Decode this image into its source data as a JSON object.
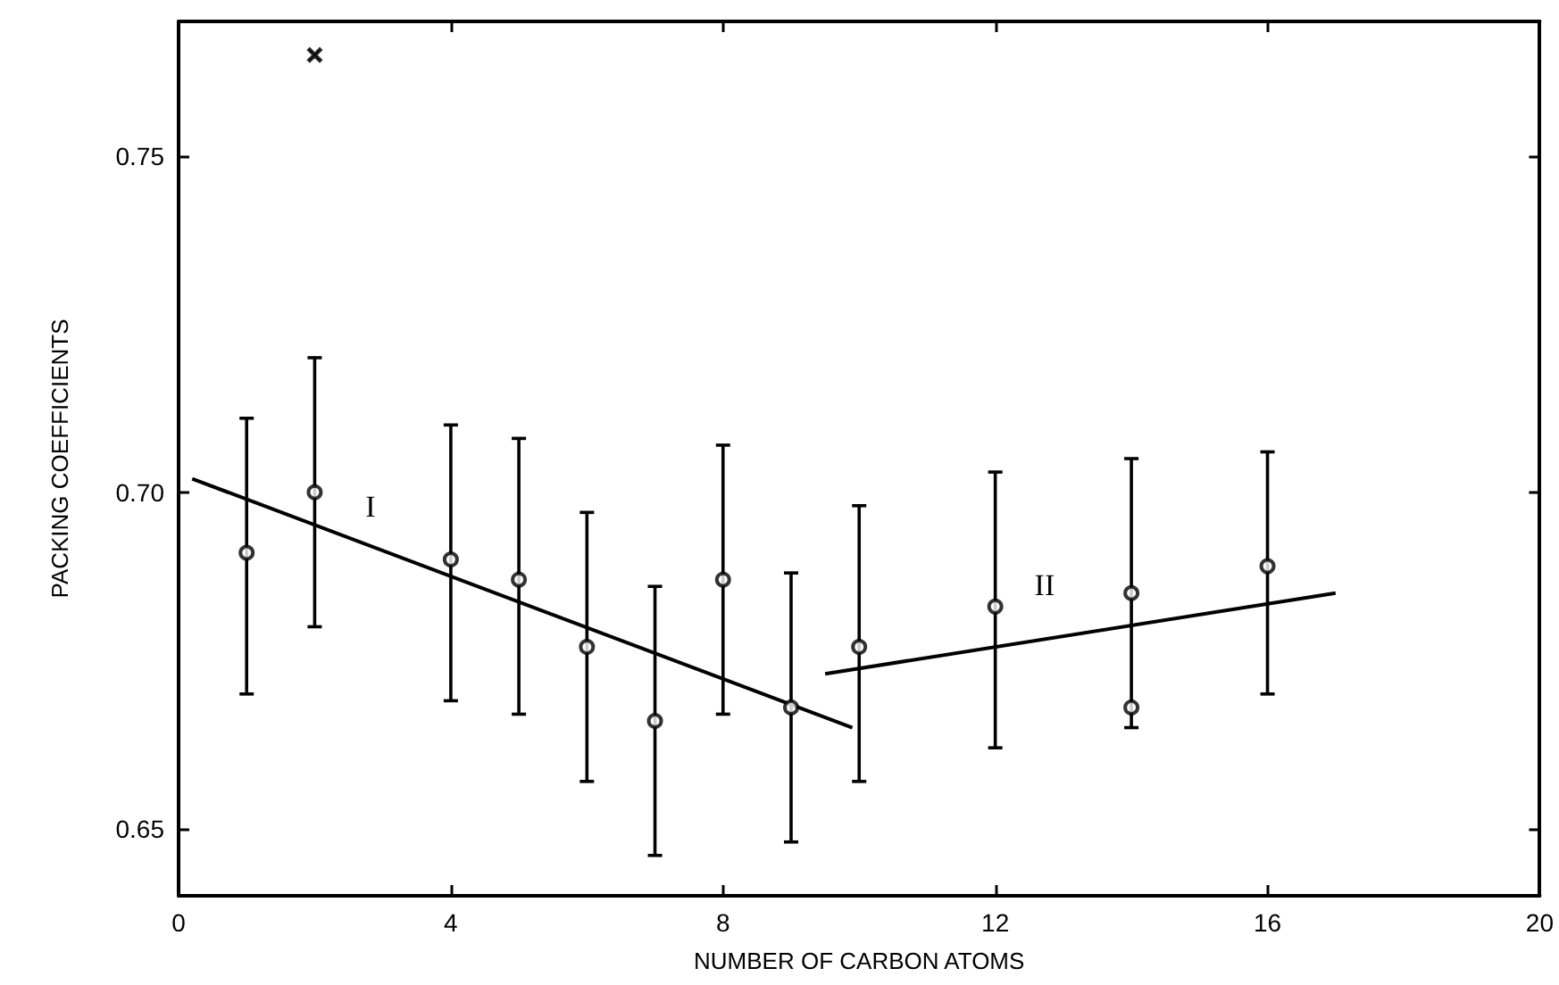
{
  "chart_data": {
    "type": "scatter",
    "xlabel": "NUMBER OF CARBON ATOMS",
    "ylabel": "PACKING COEFFICIENTS",
    "xlim": [
      0,
      20
    ],
    "xticks": [
      0,
      4,
      8,
      12,
      16,
      20
    ],
    "ylim": [
      0.64,
      0.77
    ],
    "yticks": [
      {
        "value": 0.65,
        "label": "0.65"
      },
      {
        "value": 0.7,
        "label": "0.70"
      },
      {
        "value": 0.75,
        "label": "0.75"
      }
    ],
    "grid": false,
    "series": [
      {
        "color": "#000000",
        "marker": "circle",
        "x": [
          1,
          2,
          4,
          5,
          6,
          7,
          8,
          9,
          10,
          12,
          14,
          16
        ],
        "values": [
          0.691,
          0.7,
          0.69,
          0.687,
          0.677,
          0.666,
          0.687,
          0.668,
          0.677,
          0.683,
          0.685,
          0.689
        ],
        "errors": [
          [
            0.67,
            0.711
          ],
          [
            0.68,
            0.72
          ],
          [
            0.669,
            0.71
          ],
          [
            0.667,
            0.708
          ],
          [
            0.657,
            0.697
          ],
          [
            0.646,
            0.686
          ],
          [
            0.667,
            0.707
          ],
          [
            0.648,
            0.688
          ],
          [
            0.657,
            0.698
          ],
          [
            0.662,
            0.703
          ],
          [
            0.665,
            0.705
          ],
          [
            0.67,
            0.706
          ]
        ]
      },
      {
        "color": "#000000",
        "marker": "circle",
        "x": [
          14
        ],
        "values": [
          0.668
        ]
      },
      {
        "color": "#000000",
        "marker": "cross",
        "x": [
          2
        ],
        "values": [
          0.765
        ]
      },
      {
        "type": "line",
        "name": "I",
        "color": "#000000",
        "marker": "none",
        "line_style": "solid",
        "x": [
          0.2,
          9.9
        ],
        "values": [
          0.702,
          0.665
        ]
      },
      {
        "type": "line",
        "name": "II",
        "color": "#000000",
        "marker": "none",
        "line_style": "solid",
        "x": [
          9.5,
          17
        ],
        "values": [
          0.673,
          0.685
        ]
      }
    ]
  }
}
